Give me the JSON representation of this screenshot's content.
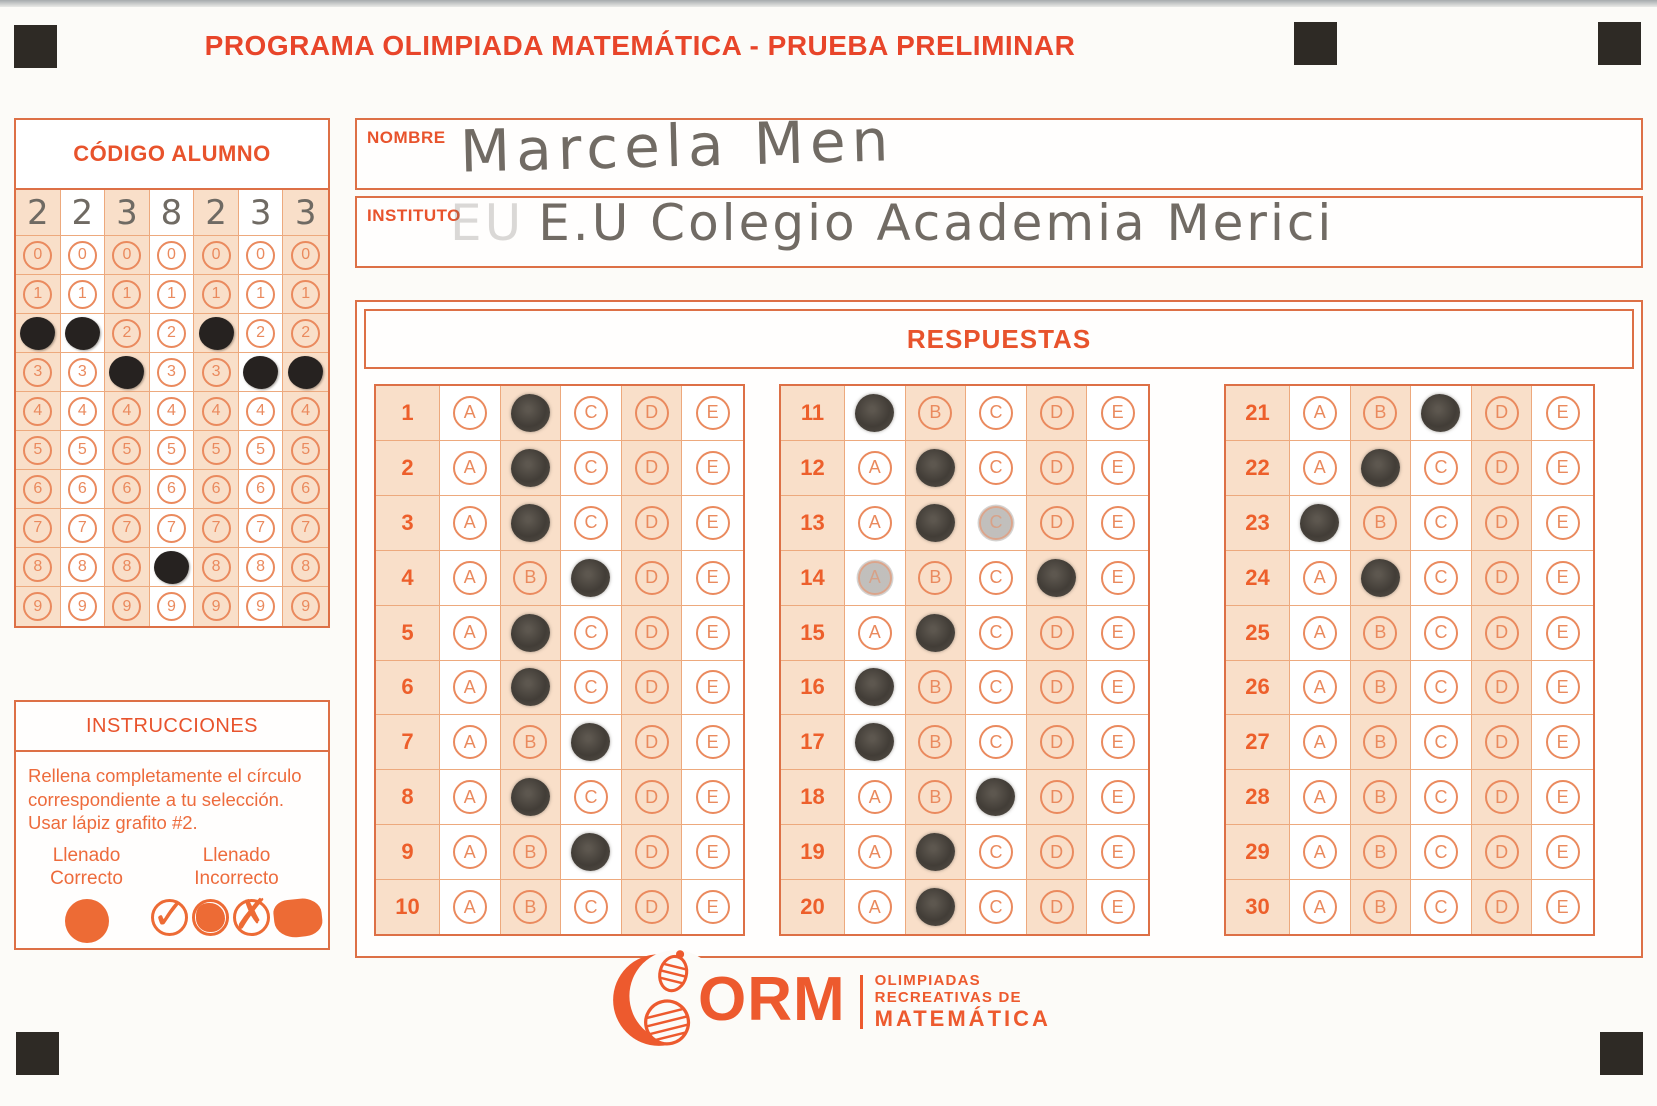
{
  "page": {
    "title": "PROGRAMA OLIMPIADA MATEMÁTICA  - PRUEBA PRELIMINAR"
  },
  "colors": {
    "accent_strong": "#e8532c",
    "accent": "#ed6b3c",
    "bubble_outline": "#ea8a5e",
    "cell_shade": "#f9dfc9",
    "ink_mark": "#262220",
    "pencil_mark": "#423d37",
    "handwriting": "#716b64",
    "registration_mark": "#2e2a25"
  },
  "codigo": {
    "title": "CÓDIGO ALUMNO",
    "handwritten_digits": [
      "2",
      "2",
      "3",
      "8",
      "2",
      "3",
      "3"
    ],
    "filled_digits": [
      2,
      2,
      3,
      8,
      2,
      3,
      3
    ],
    "row_values": [
      "0",
      "1",
      "2",
      "3",
      "4",
      "5",
      "6",
      "7",
      "8",
      "9"
    ]
  },
  "student": {
    "nombre_label": "NOMBRE",
    "nombre_value": "Marcela Men",
    "instituto_label": "INSTITUTO",
    "instituto_ghost": "EU",
    "instituto_value": "E.U Colegio Academia Merici"
  },
  "respuestas": {
    "title": "RESPUESTAS",
    "options": [
      "A",
      "B",
      "C",
      "D",
      "E"
    ],
    "answers": [
      {
        "num": 1,
        "filled": "B"
      },
      {
        "num": 2,
        "filled": "B"
      },
      {
        "num": 3,
        "filled": "B"
      },
      {
        "num": 4,
        "filled": "C"
      },
      {
        "num": 5,
        "filled": "B"
      },
      {
        "num": 6,
        "filled": "B"
      },
      {
        "num": 7,
        "filled": "C"
      },
      {
        "num": 8,
        "filled": "B"
      },
      {
        "num": 9,
        "filled": "C"
      },
      {
        "num": 10,
        "filled": null
      },
      {
        "num": 11,
        "filled": "A"
      },
      {
        "num": 12,
        "filled": "B"
      },
      {
        "num": 13,
        "filled": "B",
        "smudge": "C"
      },
      {
        "num": 14,
        "filled": "D",
        "smudge": "A"
      },
      {
        "num": 15,
        "filled": "B"
      },
      {
        "num": 16,
        "filled": "A"
      },
      {
        "num": 17,
        "filled": "A"
      },
      {
        "num": 18,
        "filled": "C"
      },
      {
        "num": 19,
        "filled": "B"
      },
      {
        "num": 20,
        "filled": "B"
      },
      {
        "num": 21,
        "filled": "C"
      },
      {
        "num": 22,
        "filled": "B"
      },
      {
        "num": 23,
        "filled": "A"
      },
      {
        "num": 24,
        "filled": "B"
      },
      {
        "num": 25,
        "filled": null
      },
      {
        "num": 26,
        "filled": null
      },
      {
        "num": 27,
        "filled": null
      },
      {
        "num": 28,
        "filled": null
      },
      {
        "num": 29,
        "filled": null
      },
      {
        "num": 30,
        "filled": null
      }
    ]
  },
  "instructions": {
    "title": "INSTRUCCIONES",
    "body": "Rellena completamente el círculo correspondiente a tu selección. Usar lápiz grafito #2.",
    "correct_label": "Llenado Correcto",
    "incorrect_label": "Llenado Incorrecto",
    "check_glyph": "✓",
    "x_glyph": "✗"
  },
  "logo": {
    "abbr": "ORM",
    "tagline_line1": "OLIMPIADAS",
    "tagline_line2": "RECREATIVAS DE",
    "tagline_line3": "MATEMÁTICA"
  }
}
